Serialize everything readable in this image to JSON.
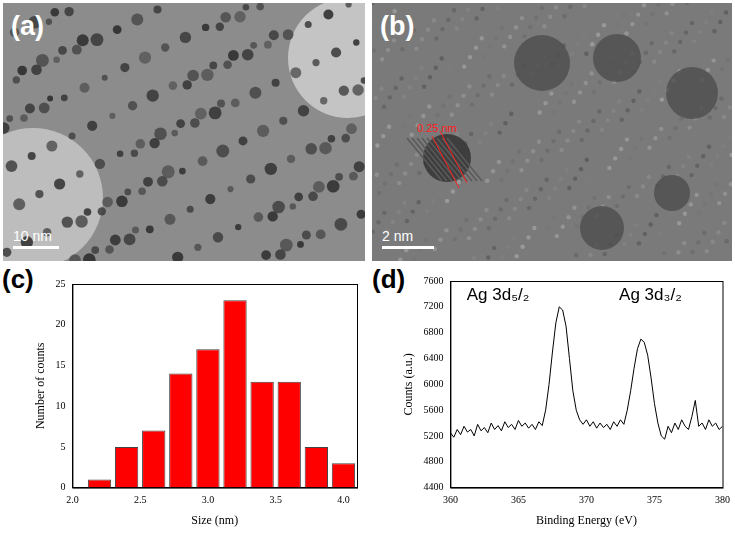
{
  "images": [
    {
      "panel_label": "(a)",
      "scale_bar": "10 nm"
    },
    {
      "panel_label": "(b)",
      "scale_bar": "2 nm",
      "annotation": "0.25 nm"
    }
  ],
  "chart_data": [
    {
      "panel_label": "(c)",
      "type": "histogram",
      "bins": [
        2.1,
        2.3,
        2.5,
        2.7,
        2.9,
        3.1,
        3.3,
        3.5,
        3.7,
        3.9,
        4.1
      ],
      "values": [
        1,
        5,
        7,
        14,
        17,
        23,
        13,
        13,
        5,
        3
      ],
      "color": "#ff0000",
      "x_label": "Size (nm)",
      "y_label": "Number of counts",
      "xlim": [
        2.0,
        4.1
      ],
      "xticks": [
        {
          "value": 2.0,
          "label": "2.0"
        },
        {
          "value": 2.5,
          "label": "2.5"
        },
        {
          "value": 3.0,
          "label": "3.0"
        },
        {
          "value": 3.5,
          "label": "3.5"
        },
        {
          "value": 4.0,
          "label": "4.0"
        }
      ],
      "ylim": [
        0,
        25
      ],
      "yticks": [
        0,
        5,
        10,
        15,
        20,
        25
      ],
      "grid": false
    },
    {
      "panel_label": "(d)",
      "type": "line",
      "x_label": "Binding Energy (eV)",
      "y_label": "Counts (a.u.)",
      "annotations": [
        "Ag 3d₅/₂",
        "Ag 3d₃/₂"
      ],
      "color": "#000000",
      "x": [
        360,
        360.25,
        360.5,
        360.75,
        361,
        361.25,
        361.5,
        361.75,
        362,
        362.25,
        362.5,
        362.75,
        363,
        363.25,
        363.5,
        363.75,
        364,
        364.25,
        364.5,
        364.75,
        365,
        365.25,
        365.5,
        365.75,
        366,
        366.25,
        366.5,
        366.75,
        367,
        367.25,
        367.5,
        367.75,
        368,
        368.25,
        368.5,
        368.75,
        369,
        369.25,
        369.5,
        369.75,
        370,
        370.25,
        370.5,
        370.75,
        371,
        371.25,
        371.5,
        371.75,
        372,
        372.25,
        372.5,
        372.75,
        373,
        373.25,
        373.5,
        373.75,
        374,
        374.25,
        374.5,
        374.75,
        375,
        375.25,
        375.5,
        375.75,
        376,
        376.25,
        376.5,
        376.75,
        377,
        377.25,
        377.5,
        377.75,
        378,
        378.25,
        378.5,
        378.75,
        379,
        379.25,
        379.5,
        379.75,
        380
      ],
      "values": [
        5250,
        5180,
        5300,
        5220,
        5350,
        5260,
        5300,
        5200,
        5380,
        5280,
        5330,
        5250,
        5400,
        5300,
        5360,
        5280,
        5420,
        5330,
        5380,
        5300,
        5440,
        5350,
        5400,
        5320,
        5380,
        5300,
        5420,
        5360,
        5600,
        6000,
        6500,
        6950,
        7200,
        7150,
        6900,
        6400,
        5900,
        5600,
        5450,
        5380,
        5450,
        5350,
        5420,
        5320,
        5400,
        5330,
        5380,
        5300,
        5420,
        5350,
        5450,
        5380,
        5600,
        5900,
        6250,
        6550,
        6700,
        6650,
        6450,
        6100,
        5700,
        5400,
        5200,
        5150,
        5350,
        5250,
        5400,
        5300,
        5450,
        5350,
        5300,
        5500,
        5750,
        5350,
        5400,
        5300,
        5450,
        5350,
        5400,
        5300,
        5350
      ],
      "xlim": [
        360,
        380
      ],
      "xticks": [
        360,
        365,
        370,
        375,
        380
      ],
      "ylim": [
        4400,
        7600
      ],
      "yticks": [
        4400,
        4800,
        5200,
        5600,
        6000,
        6400,
        6800,
        7200,
        7600
      ],
      "grid": false
    }
  ]
}
